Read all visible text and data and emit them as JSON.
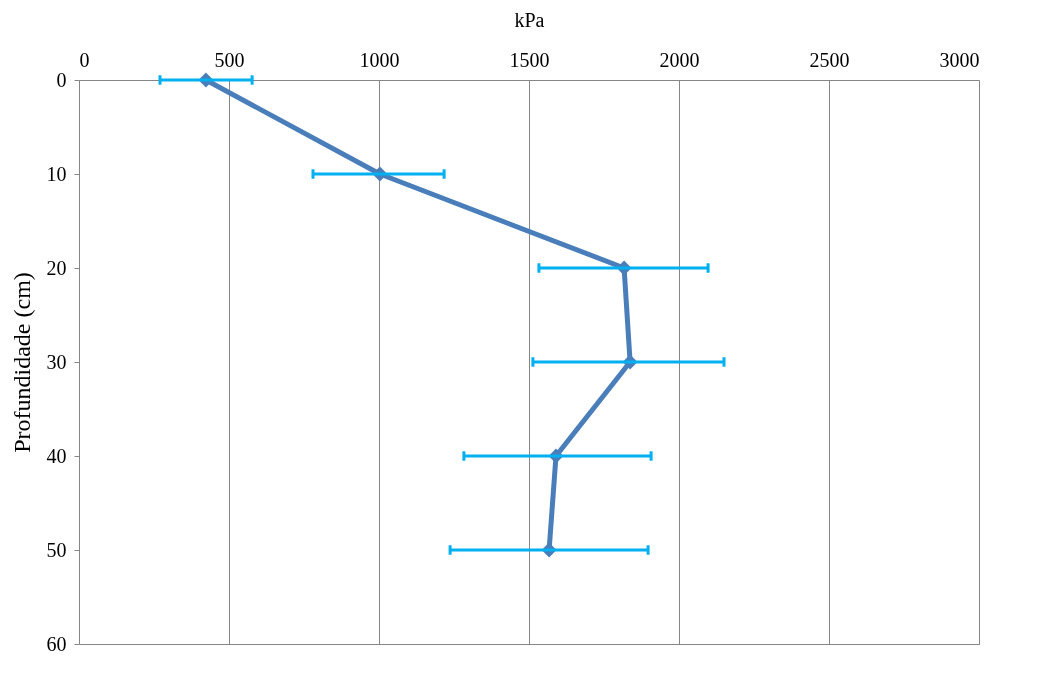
{
  "chart_data": {
    "type": "line",
    "xlabel": "kPa",
    "ylabel": "Profundidade (cm)",
    "x": [
      423,
      1003,
      1817,
      1837,
      1590,
      1567
    ],
    "series": [
      {
        "color": "#4a7ebb",
        "values": [
          0,
          10,
          20,
          30,
          40,
          50
        ],
        "xerrors": [
          [
            270,
            577
          ],
          [
            780,
            1217
          ],
          [
            1533,
            2097
          ],
          [
            1513,
            2150
          ],
          [
            1283,
            1907
          ],
          [
            1237,
            1897
          ]
        ]
      }
    ],
    "xlim": [
      0,
      3000
    ],
    "xticks": [
      0,
      500,
      1000,
      1500,
      2000,
      2500,
      3000
    ],
    "ylim": [
      60,
      0
    ],
    "yticks": [
      0,
      10,
      20,
      30,
      40,
      50,
      60
    ],
    "grid": "x",
    "marker": "diamond",
    "line_style": "solid"
  }
}
